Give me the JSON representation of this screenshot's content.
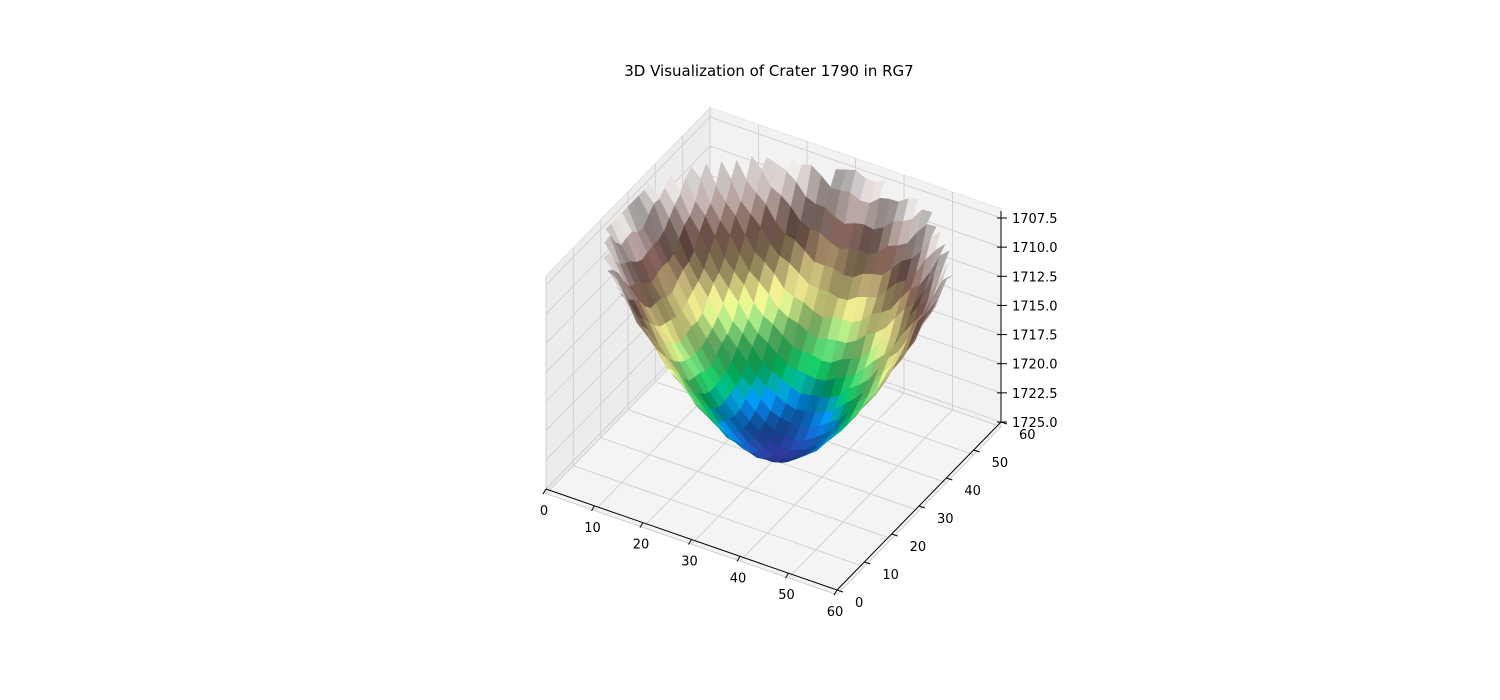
{
  "chart_data": {
    "type": "surface",
    "title": "3D Visualization of Crater 1790 in RG7",
    "xlabel": "",
    "ylabel": "",
    "zlabel": "",
    "x_range": [
      0,
      60
    ],
    "y_range": [
      0,
      60
    ],
    "z_range": [
      1707.5,
      1725.0
    ],
    "z_axis_inverted": true,
    "x_ticks": [
      0,
      10,
      20,
      30,
      40,
      50,
      60
    ],
    "y_ticks": [
      0,
      10,
      20,
      30,
      40,
      50,
      60
    ],
    "z_ticks": [
      "1707.5",
      "1710.0",
      "1712.5",
      "1715.0",
      "1717.5",
      "1720.0",
      "1722.5",
      "1725.0"
    ],
    "grid": true,
    "colormap": "terrain",
    "surface": {
      "description_units": "elevation",
      "rim_elevation": 1708.0,
      "floor_elevation": 1725.0,
      "center_x": 31,
      "center_y": 30,
      "radius": 31
    }
  }
}
